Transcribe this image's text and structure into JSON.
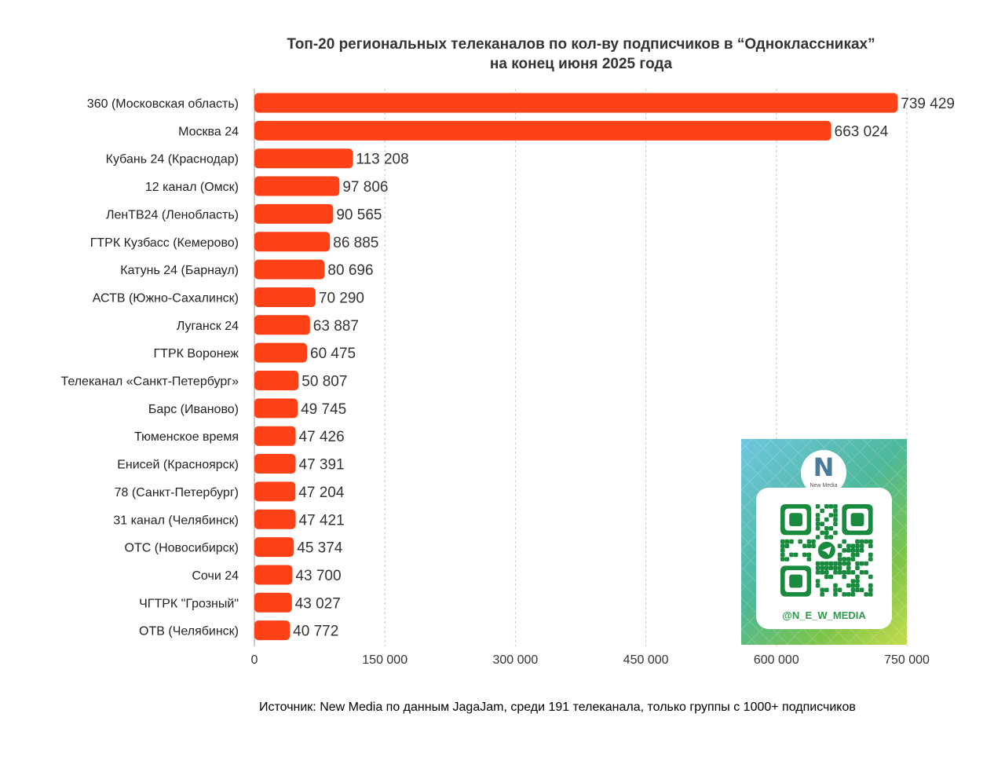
{
  "title": {
    "line1": "Топ-20 региональных телеканалов по кол-ву подписчиков в “Одноклассниках”",
    "line2": "на конец июня 2025 года"
  },
  "source": "Источник: New Media по данным JagaJam, среди 191 телеканала, только группы с 1000+ подписчиков",
  "qr_card": {
    "logo_text": "N",
    "logo_subtext": "New Media",
    "handle": "@N_E_W_MEDIA",
    "icon": "telegram-icon"
  },
  "colors": {
    "bar": "#ff4117",
    "grid": "#c8c8c8",
    "qr_green": "#1a8a3e"
  },
  "chart_data": {
    "type": "bar",
    "orientation": "horizontal",
    "categories": [
      "360 (Московская область)",
      "Москва 24",
      "Кубань 24 (Краснодар)",
      "12 канал (Омск)",
      "ЛенТВ24 (Ленобласть)",
      "ГТРК Кузбасс (Кемерово)",
      "Катунь 24 (Барнаул)",
      "АСТВ (Южно-Сахалинск)",
      "Луганск 24",
      "ГТРК Воронеж",
      "Телеканал «Санкт-Петербург»",
      "Барс (Иваново)",
      "Тюменское время",
      "Енисей (Красноярск)",
      "78 (Санкт-Петербург)",
      "31 канал (Челябинск)",
      "ОТС (Новосибирск)",
      "Сочи 24",
      "ЧГТРК \"Грозный\"",
      "ОТВ (Челябинск)"
    ],
    "values": [
      739429,
      663024,
      113208,
      97806,
      90565,
      86885,
      80696,
      70290,
      63887,
      60475,
      50807,
      49745,
      47426,
      47391,
      47204,
      47421,
      45374,
      43700,
      43027,
      40772
    ],
    "value_labels": [
      "739 429",
      "663 024",
      "113 208",
      "97 806",
      "90 565",
      "86 885",
      "80 696",
      "70 290",
      "63 887",
      "60 475",
      "50 807",
      "49 745",
      "47 426",
      "47 391",
      "47 204",
      "47 421",
      "45 374",
      "43 700",
      "43 027",
      "40 772"
    ],
    "xlim": [
      0,
      750000
    ],
    "xticks": [
      0,
      150000,
      300000,
      450000,
      600000,
      750000
    ],
    "xtick_labels": [
      "0",
      "150 000",
      "300 000",
      "450 000",
      "600 000",
      "750 000"
    ],
    "grid": true
  }
}
